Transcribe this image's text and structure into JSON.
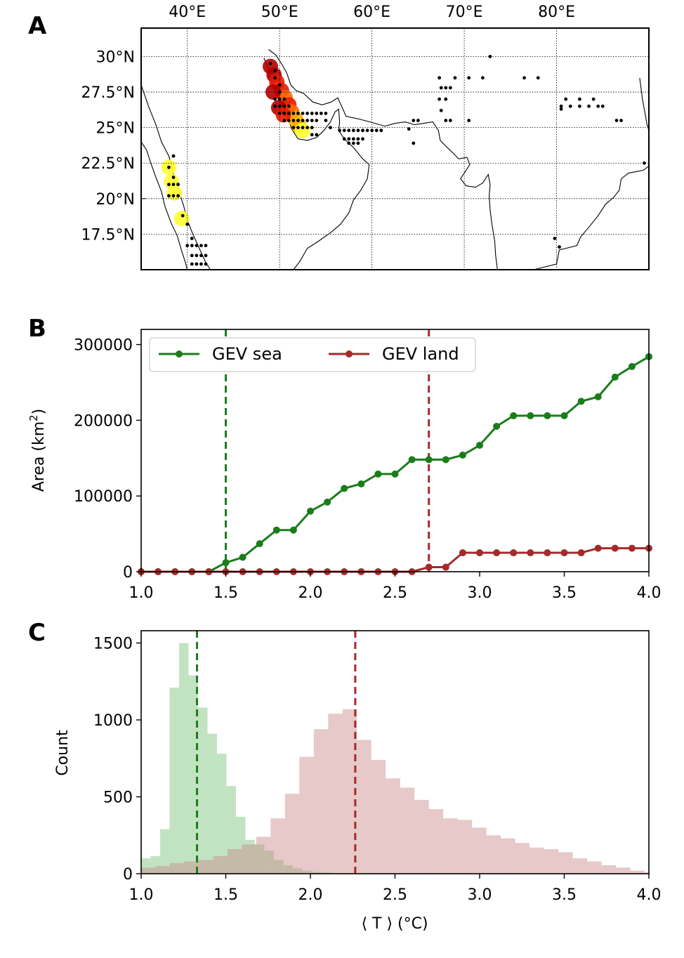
{
  "figure": {
    "panel_labels": [
      "A",
      "B",
      "C"
    ]
  },
  "chart_data": [
    {
      "panel": "A",
      "type": "scatter",
      "title": "",
      "xlim": [
        35,
        90
      ],
      "ylim": [
        15,
        32
      ],
      "xtick_values": [
        40,
        50,
        60,
        70,
        80
      ],
      "xtick_labels": [
        "40°E",
        "50°E",
        "60°E",
        "70°E",
        "80°E"
      ],
      "ytick_values": [
        30,
        27.5,
        25,
        22.5,
        20,
        17.5
      ],
      "ytick_labels": [
        "30°N",
        "27.5°N",
        "25°N",
        "22.5°N",
        "20°N",
        "17.5°N"
      ],
      "grid": true,
      "grid_style": "dotted",
      "heat_colors": [
        "#ffff33",
        "#ffb000",
        "#ff6a00",
        "#e81a00",
        "#b40000"
      ],
      "heat_cells": [
        {
          "lon": 49.0,
          "lat": 29.3,
          "v": 4
        },
        {
          "lon": 49.4,
          "lat": 28.7,
          "v": 4
        },
        {
          "lon": 49.7,
          "lat": 28.2,
          "v": 3
        },
        {
          "lon": 50.2,
          "lat": 27.6,
          "v": 3
        },
        {
          "lon": 50.6,
          "lat": 27.1,
          "v": 2
        },
        {
          "lon": 51.0,
          "lat": 26.6,
          "v": 3
        },
        {
          "lon": 51.3,
          "lat": 26.1,
          "v": 2
        },
        {
          "lon": 51.7,
          "lat": 25.6,
          "v": 1
        },
        {
          "lon": 52.1,
          "lat": 25.1,
          "v": 1
        },
        {
          "lon": 52.5,
          "lat": 24.8,
          "v": 0
        },
        {
          "lon": 49.9,
          "lat": 26.4,
          "v": 4
        },
        {
          "lon": 50.4,
          "lat": 25.9,
          "v": 3
        },
        {
          "lon": 49.3,
          "lat": 27.5,
          "v": 4
        },
        {
          "lon": 38.0,
          "lat": 22.2,
          "v": 0
        },
        {
          "lon": 38.3,
          "lat": 21.2,
          "v": 0
        },
        {
          "lon": 38.6,
          "lat": 20.4,
          "v": 0
        },
        {
          "lon": 39.4,
          "lat": 18.6,
          "v": 0
        }
      ],
      "points": [
        {
          "lon": 49.0,
          "lat": 29.5
        },
        {
          "lon": 49.5,
          "lat": 29.0
        },
        {
          "lon": 49.5,
          "lat": 28.5
        },
        {
          "lon": 50.0,
          "lat": 28.0
        },
        {
          "lon": 50.0,
          "lat": 27.5
        },
        {
          "lon": 49.5,
          "lat": 27.0
        },
        {
          "lon": 50.0,
          "lat": 27.0
        },
        {
          "lon": 50.5,
          "lat": 27.0
        },
        {
          "lon": 49.5,
          "lat": 26.5
        },
        {
          "lon": 50.0,
          "lat": 26.5
        },
        {
          "lon": 50.5,
          "lat": 26.5
        },
        {
          "lon": 51.0,
          "lat": 26.5
        },
        {
          "lon": 50.0,
          "lat": 26.0
        },
        {
          "lon": 50.5,
          "lat": 26.0
        },
        {
          "lon": 51.0,
          "lat": 26.0
        },
        {
          "lon": 51.5,
          "lat": 26.0
        },
        {
          "lon": 52.0,
          "lat": 26.0
        },
        {
          "lon": 52.5,
          "lat": 26.0
        },
        {
          "lon": 53.0,
          "lat": 26.0
        },
        {
          "lon": 53.5,
          "lat": 26.0
        },
        {
          "lon": 54.0,
          "lat": 26.0
        },
        {
          "lon": 54.5,
          "lat": 26.0
        },
        {
          "lon": 55.0,
          "lat": 26.0
        },
        {
          "lon": 50.5,
          "lat": 25.5
        },
        {
          "lon": 51.0,
          "lat": 25.5
        },
        {
          "lon": 51.5,
          "lat": 25.5
        },
        {
          "lon": 52.0,
          "lat": 25.5
        },
        {
          "lon": 52.5,
          "lat": 25.5
        },
        {
          "lon": 53.0,
          "lat": 25.5
        },
        {
          "lon": 53.5,
          "lat": 25.5
        },
        {
          "lon": 54.0,
          "lat": 25.5
        },
        {
          "lon": 55.0,
          "lat": 25.5
        },
        {
          "lon": 51.5,
          "lat": 25.0
        },
        {
          "lon": 52.0,
          "lat": 25.0
        },
        {
          "lon": 52.5,
          "lat": 25.0
        },
        {
          "lon": 53.0,
          "lat": 25.0
        },
        {
          "lon": 53.5,
          "lat": 25.0
        },
        {
          "lon": 55.5,
          "lat": 25.0
        },
        {
          "lon": 56.5,
          "lat": 24.8
        },
        {
          "lon": 57.0,
          "lat": 24.8
        },
        {
          "lon": 57.5,
          "lat": 24.8
        },
        {
          "lon": 58.0,
          "lat": 24.8
        },
        {
          "lon": 58.5,
          "lat": 24.8
        },
        {
          "lon": 59.0,
          "lat": 24.8
        },
        {
          "lon": 59.5,
          "lat": 24.8
        },
        {
          "lon": 60.0,
          "lat": 24.8
        },
        {
          "lon": 60.5,
          "lat": 24.8
        },
        {
          "lon": 61.0,
          "lat": 24.8
        },
        {
          "lon": 53.5,
          "lat": 24.5
        },
        {
          "lon": 54.0,
          "lat": 24.5
        },
        {
          "lon": 57.0,
          "lat": 24.2
        },
        {
          "lon": 57.5,
          "lat": 24.2
        },
        {
          "lon": 58.0,
          "lat": 24.2
        },
        {
          "lon": 58.5,
          "lat": 24.2
        },
        {
          "lon": 59.0,
          "lat": 24.2
        },
        {
          "lon": 57.5,
          "lat": 23.9
        },
        {
          "lon": 58.0,
          "lat": 23.9
        },
        {
          "lon": 58.5,
          "lat": 23.9
        },
        {
          "lon": 64.5,
          "lat": 25.5
        },
        {
          "lon": 65.0,
          "lat": 25.5
        },
        {
          "lon": 64.0,
          "lat": 24.9
        },
        {
          "lon": 64.5,
          "lat": 23.9
        },
        {
          "lon": 67.3,
          "lat": 28.5
        },
        {
          "lon": 67.5,
          "lat": 27.8
        },
        {
          "lon": 68.0,
          "lat": 27.8
        },
        {
          "lon": 68.5,
          "lat": 27.8
        },
        {
          "lon": 67.3,
          "lat": 27.0
        },
        {
          "lon": 68.0,
          "lat": 27.0
        },
        {
          "lon": 69.0,
          "lat": 28.5
        },
        {
          "lon": 70.5,
          "lat": 28.5
        },
        {
          "lon": 72.0,
          "lat": 28.5
        },
        {
          "lon": 72.8,
          "lat": 30.0
        },
        {
          "lon": 67.5,
          "lat": 26.2
        },
        {
          "lon": 68.0,
          "lat": 25.5
        },
        {
          "lon": 68.5,
          "lat": 25.5
        },
        {
          "lon": 70.5,
          "lat": 25.5
        },
        {
          "lon": 76.5,
          "lat": 28.5
        },
        {
          "lon": 78.0,
          "lat": 28.5
        },
        {
          "lon": 80.5,
          "lat": 26.3
        },
        {
          "lon": 81.0,
          "lat": 27.0
        },
        {
          "lon": 82.5,
          "lat": 27.0
        },
        {
          "lon": 84.0,
          "lat": 27.0
        },
        {
          "lon": 84.5,
          "lat": 26.5
        },
        {
          "lon": 80.5,
          "lat": 26.5
        },
        {
          "lon": 81.5,
          "lat": 26.5
        },
        {
          "lon": 82.5,
          "lat": 26.5
        },
        {
          "lon": 83.5,
          "lat": 26.5
        },
        {
          "lon": 85.0,
          "lat": 26.5
        },
        {
          "lon": 86.5,
          "lat": 25.5
        },
        {
          "lon": 87.0,
          "lat": 25.5
        },
        {
          "lon": 89.5,
          "lat": 22.5
        },
        {
          "lon": 79.8,
          "lat": 17.2
        },
        {
          "lon": 80.3,
          "lat": 16.6
        },
        {
          "lon": 38.5,
          "lat": 23.0
        },
        {
          "lon": 38.0,
          "lat": 22.2
        },
        {
          "lon": 38.5,
          "lat": 21.5
        },
        {
          "lon": 38.0,
          "lat": 21.0
        },
        {
          "lon": 38.5,
          "lat": 21.0
        },
        {
          "lon": 39.0,
          "lat": 21.0
        },
        {
          "lon": 38.0,
          "lat": 20.2
        },
        {
          "lon": 38.5,
          "lat": 20.2
        },
        {
          "lon": 39.0,
          "lat": 20.2
        },
        {
          "lon": 39.5,
          "lat": 18.8
        },
        {
          "lon": 40.0,
          "lat": 18.2
        },
        {
          "lon": 40.5,
          "lat": 17.2
        },
        {
          "lon": 40.0,
          "lat": 16.7
        },
        {
          "lon": 40.5,
          "lat": 16.7
        },
        {
          "lon": 41.0,
          "lat": 16.7
        },
        {
          "lon": 41.5,
          "lat": 16.7
        },
        {
          "lon": 42.0,
          "lat": 16.7
        },
        {
          "lon": 40.5,
          "lat": 16.0
        },
        {
          "lon": 41.0,
          "lat": 16.0
        },
        {
          "lon": 41.5,
          "lat": 16.0
        },
        {
          "lon": 42.0,
          "lat": 16.0
        },
        {
          "lon": 40.5,
          "lat": 15.4
        },
        {
          "lon": 41.0,
          "lat": 15.4
        },
        {
          "lon": 41.5,
          "lat": 15.4
        },
        {
          "lon": 42.0,
          "lat": 15.4
        }
      ]
    },
    {
      "panel": "B",
      "type": "line",
      "title": "",
      "xlabel": "",
      "ylabel_prefix": "Area (km",
      "ylabel_sup": "2",
      "ylabel_suffix": ")",
      "xlim": [
        1.0,
        4.0
      ],
      "ylim": [
        0,
        320000
      ],
      "xtick_values": [
        1.0,
        1.5,
        2.0,
        2.5,
        3.0,
        3.5,
        4.0
      ],
      "xtick_labels": [
        "1.0",
        "1.5",
        "2.0",
        "2.5",
        "3.0",
        "3.5",
        "4.0"
      ],
      "ytick_values": [
        0,
        100000,
        200000,
        300000
      ],
      "ytick_labels": [
        "0",
        "100000",
        "200000",
        "300000"
      ],
      "legend_position": "top",
      "x": [
        1.0,
        1.1,
        1.2,
        1.3,
        1.4,
        1.5,
        1.6,
        1.7,
        1.8,
        1.9,
        2.0,
        2.1,
        2.2,
        2.3,
        2.4,
        2.5,
        2.6,
        2.7,
        2.8,
        2.9,
        3.0,
        3.1,
        3.2,
        3.3,
        3.4,
        3.5,
        3.6,
        3.7,
        3.8,
        3.9,
        4.0
      ],
      "series": [
        {
          "name": "GEV sea",
          "color": "#1a7d1a",
          "values": [
            0,
            0,
            0,
            0,
            0,
            12000,
            19000,
            37000,
            55000,
            55000,
            80000,
            92000,
            110000,
            116000,
            129000,
            129000,
            148000,
            148000,
            148000,
            154000,
            167000,
            192000,
            206000,
            206000,
            206000,
            206000,
            225000,
            231000,
            257000,
            271000,
            284000
          ]
        },
        {
          "name": "GEV land",
          "color": "#a52a2a",
          "values": [
            0,
            0,
            0,
            0,
            0,
            0,
            0,
            0,
            0,
            0,
            0,
            0,
            0,
            0,
            0,
            0,
            0,
            6000,
            6000,
            25000,
            25000,
            25000,
            25000,
            25000,
            25000,
            25000,
            25000,
            31000,
            31000,
            31000,
            31000
          ]
        }
      ],
      "vlines": [
        {
          "x": 1.5,
          "color": "#1a7d1a"
        },
        {
          "x": 2.7,
          "color": "#a52a2a"
        }
      ]
    },
    {
      "panel": "C",
      "type": "bar",
      "title": "",
      "xlabel": "⟨ T ⟩ (°C)",
      "ylabel": "Count",
      "xlim": [
        1.0,
        4.0
      ],
      "ylim": [
        0,
        1580
      ],
      "xtick_values": [
        1.0,
        1.5,
        2.0,
        2.5,
        3.0,
        3.5,
        4.0
      ],
      "xtick_labels": [
        "1.0",
        "1.5",
        "2.0",
        "2.5",
        "3.0",
        "3.5",
        "4.0"
      ],
      "ytick_values": [
        0,
        500,
        1000,
        1500
      ],
      "ytick_labels": [
        "0",
        "500",
        "1000",
        "1500"
      ],
      "series": [
        {
          "name": "",
          "color": "#8fcc8f",
          "opacity": 0.55,
          "edges": [
            1.0,
            1.056,
            1.112,
            1.168,
            1.224,
            1.28,
            1.336,
            1.392,
            1.448,
            1.504,
            1.56,
            1.616,
            1.672,
            1.728,
            1.784,
            1.84,
            1.896,
            1.952,
            2.008,
            2.064,
            2.12,
            2.176,
            2.232
          ],
          "values": [
            100,
            115,
            290,
            1210,
            1500,
            1290,
            1080,
            910,
            780,
            570,
            370,
            220,
            190,
            150,
            90,
            55,
            35,
            20,
            12,
            8,
            5,
            3
          ]
        },
        {
          "name": "",
          "color": "#c98888",
          "opacity": 0.45,
          "edges": [
            1.0,
            1.085,
            1.17,
            1.255,
            1.34,
            1.425,
            1.51,
            1.595,
            1.68,
            1.765,
            1.85,
            1.935,
            2.02,
            2.105,
            2.19,
            2.275,
            2.36,
            2.445,
            2.53,
            2.615,
            2.7,
            2.785,
            2.87,
            2.955,
            3.04,
            3.125,
            3.21,
            3.295,
            3.38,
            3.465,
            3.55,
            3.635,
            3.72,
            3.805,
            3.89,
            3.975,
            4.06
          ],
          "values": [
            40,
            50,
            70,
            80,
            90,
            115,
            160,
            190,
            240,
            360,
            520,
            760,
            940,
            1040,
            1070,
            870,
            740,
            620,
            560,
            480,
            420,
            360,
            350,
            300,
            250,
            230,
            200,
            170,
            160,
            140,
            100,
            80,
            55,
            40,
            20,
            10
          ]
        }
      ],
      "vlines": [
        {
          "x": 1.33,
          "color": "#1a7d1a"
        },
        {
          "x": 2.265,
          "color": "#a52a2a"
        }
      ]
    }
  ]
}
